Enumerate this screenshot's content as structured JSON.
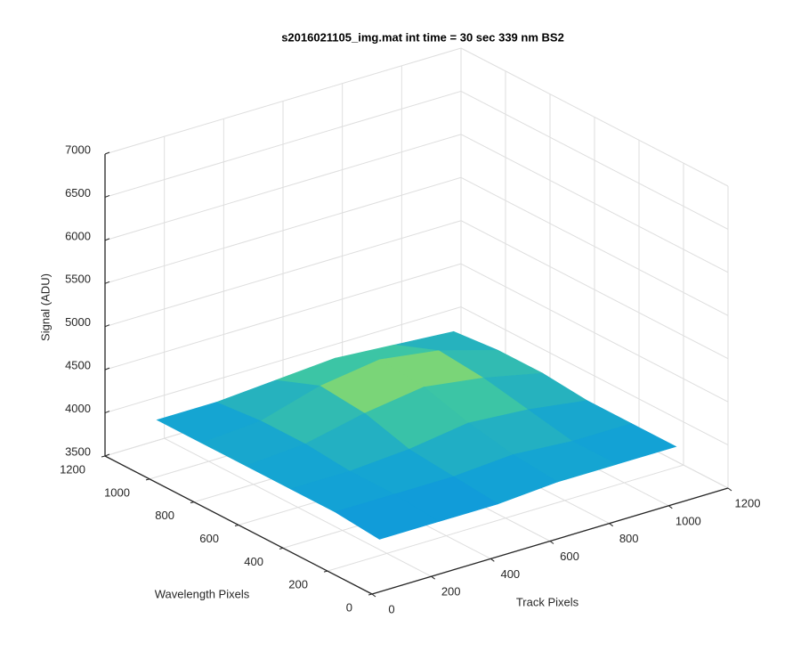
{
  "chart_data": {
    "type": "surface",
    "title": "s2016021105_img.mat int time = 30 sec  339 nm BS2",
    "xlabel": "Track Pixels",
    "ylabel": "Wavelength Pixels",
    "zlabel": "Signal (ADU)",
    "x": [
      100,
      300,
      500,
      700,
      900,
      1100
    ],
    "y": [
      100,
      300,
      500,
      700,
      900,
      1100
    ],
    "z": [
      [
        3900,
        3900,
        3900,
        3950,
        3950,
        3950
      ],
      [
        3950,
        3950,
        3950,
        4000,
        3950,
        3950
      ],
      [
        3950,
        3950,
        4000,
        4100,
        4050,
        3950
      ],
      [
        3950,
        4000,
        4150,
        4250,
        4150,
        4000
      ],
      [
        3950,
        4000,
        4200,
        4300,
        4200,
        4000
      ],
      [
        3950,
        3950,
        4000,
        4050,
        4000,
        3950
      ]
    ],
    "xlim": [
      0,
      1200
    ],
    "ylim": [
      0,
      1200
    ],
    "zlim": [
      3500,
      7000
    ],
    "xticks": [
      0,
      200,
      400,
      600,
      800,
      1000,
      1200
    ],
    "yticks": [
      0,
      200,
      400,
      600,
      800,
      1000,
      1200
    ],
    "zticks": [
      3500,
      4000,
      4500,
      5000,
      5500,
      6000,
      6500,
      7000
    ],
    "grid": true,
    "colormap": [
      "#3030c8",
      "#2060e8",
      "#10a0d8",
      "#40c8a0",
      "#f8f020"
    ]
  }
}
